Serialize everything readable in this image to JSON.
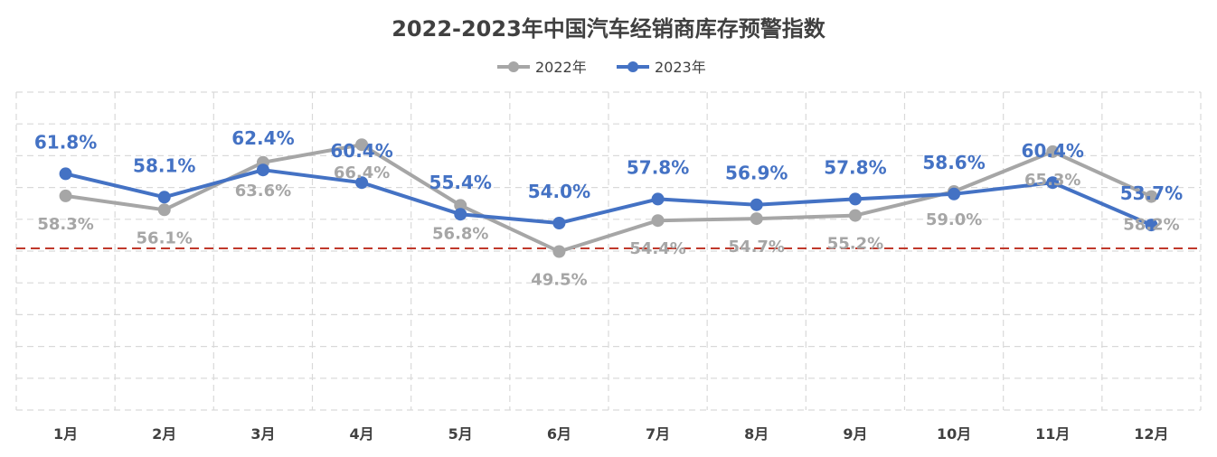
{
  "chart_data": {
    "type": "line",
    "title": "2022-2023年中国汽车经销商库存预警指数",
    "categories": [
      "1月",
      "2月",
      "3月",
      "4月",
      "5月",
      "6月",
      "7月",
      "8月",
      "9月",
      "10月",
      "11月",
      "12月"
    ],
    "series": [
      {
        "name": "2022年",
        "color": "#A6A6A6",
        "values": [
          58.3,
          56.1,
          63.6,
          66.4,
          56.8,
          49.5,
          54.4,
          54.7,
          55.2,
          59.0,
          65.3,
          58.2
        ],
        "labels": [
          "58.3%",
          "56.1%",
          "63.6%",
          "66.4%",
          "56.8%",
          "49.5%",
          "54.4%",
          "54.7%",
          "55.2%",
          "59.0%",
          "65.3%",
          "58.2%"
        ]
      },
      {
        "name": "2023年",
        "color": "#4472C4",
        "values": [
          61.8,
          58.1,
          62.4,
          60.4,
          55.4,
          54.0,
          57.8,
          56.9,
          57.8,
          58.6,
          60.4,
          53.7
        ],
        "labels": [
          "61.8%",
          "58.1%",
          "62.4%",
          "60.4%",
          "55.4%",
          "54.0%",
          "57.8%",
          "56.9%",
          "57.8%",
          "58.6%",
          "60.4%",
          "53.7%"
        ]
      }
    ],
    "reference_line": {
      "value": 50,
      "color": "#C0392B",
      "style": "dashed"
    },
    "legend_position": "top-center",
    "grid": true,
    "ylim": [
      0,
      100
    ]
  }
}
